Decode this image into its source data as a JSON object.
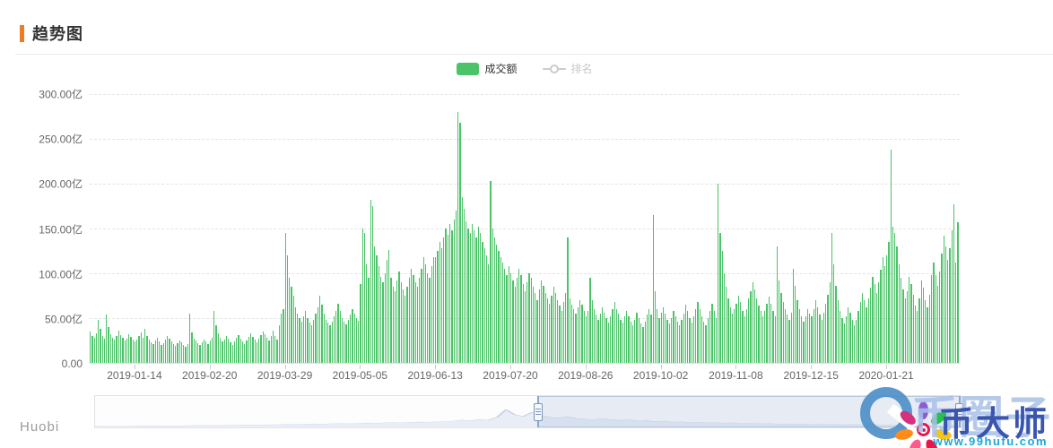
{
  "header": {
    "title": "趋势图"
  },
  "legend": {
    "items": [
      {
        "label": "成交额",
        "type": "bar",
        "active": true
      },
      {
        "label": "排名",
        "type": "line",
        "active": false
      }
    ]
  },
  "chart_data": {
    "type": "bar",
    "title": "趋势图",
    "series_name": "成交额",
    "unit": "亿",
    "ylim": [
      0,
      300
    ],
    "grid": "horizontal-dashed",
    "legend_position": "top-center",
    "y_tick_labels": [
      "300.00亿",
      "250.00亿",
      "200.00亿",
      "150.00亿",
      "100.00亿",
      "50.00亿",
      "0.00"
    ],
    "x_tick_labels": [
      "2019-01-14",
      "2019-02-20",
      "2019-03-29",
      "2019-05-05",
      "2019-06-13",
      "2019-07-20",
      "2019-08-26",
      "2019-10-02",
      "2019-11-08",
      "2019-12-15",
      "2020-01-21"
    ],
    "values": [
      35,
      30,
      28,
      33,
      48,
      38,
      30,
      27,
      54,
      40,
      32,
      28,
      26,
      30,
      36,
      31,
      28,
      25,
      27,
      32,
      29,
      26,
      24,
      26,
      30,
      34,
      28,
      38,
      30,
      26,
      23,
      21,
      25,
      28,
      24,
      20,
      22,
      26,
      30,
      27,
      24,
      21,
      19,
      22,
      25,
      23,
      20,
      18,
      21,
      55,
      34,
      27,
      25,
      22,
      20,
      23,
      26,
      24,
      21,
      25,
      28,
      58,
      42,
      33,
      28,
      24,
      26,
      30,
      27,
      23,
      20,
      24,
      28,
      31,
      27,
      24,
      21,
      25,
      29,
      33,
      29,
      26,
      23,
      27,
      31,
      35,
      32,
      28,
      25,
      30,
      36,
      30,
      26,
      42,
      55,
      60,
      145,
      120,
      95,
      85,
      75,
      62,
      55,
      50,
      46,
      52,
      58,
      50,
      45,
      42,
      48,
      55,
      62,
      75,
      65,
      55,
      48,
      45,
      42,
      46,
      52,
      58,
      66,
      58,
      50,
      46,
      43,
      48,
      54,
      60,
      55,
      50,
      47,
      88,
      150,
      145,
      110,
      95,
      182,
      175,
      130,
      120,
      108,
      96,
      90,
      100,
      115,
      126,
      95,
      85,
      80,
      92,
      102,
      90,
      82,
      75,
      85,
      95,
      105,
      98,
      90,
      85,
      95,
      105,
      118,
      110,
      100,
      95,
      108,
      118,
      118,
      125,
      135,
      128,
      140,
      150,
      143,
      155,
      148,
      160,
      170,
      280,
      268,
      185,
      172,
      158,
      150,
      145,
      155,
      148,
      140,
      152,
      145,
      135,
      128,
      120,
      110,
      203,
      150,
      140,
      132,
      125,
      118,
      112,
      105,
      98,
      108,
      100,
      92,
      85,
      95,
      105,
      98,
      88,
      80,
      90,
      100,
      95,
      85,
      78,
      70,
      82,
      92,
      86,
      78,
      72,
      66,
      75,
      85,
      78,
      70,
      64,
      58,
      68,
      78,
      140,
      72,
      65,
      60,
      55,
      62,
      70,
      65,
      58,
      52,
      58,
      95,
      70,
      60,
      54,
      48,
      55,
      62,
      56,
      50,
      45,
      52,
      60,
      68,
      60,
      55,
      48,
      45,
      52,
      58,
      52,
      46,
      42,
      48,
      56,
      50,
      44,
      40,
      46,
      54,
      60,
      54,
      165,
      80,
      60,
      50,
      56,
      62,
      55,
      48,
      44,
      50,
      58,
      52,
      46,
      42,
      48,
      55,
      65,
      58,
      50,
      45,
      52,
      60,
      68,
      60,
      52,
      46,
      42,
      50,
      58,
      66,
      58,
      50,
      200,
      145,
      125,
      100,
      85,
      72,
      62,
      55,
      60,
      66,
      75,
      68,
      58,
      52,
      60,
      72,
      80,
      90,
      82,
      72,
      64,
      58,
      52,
      58,
      66,
      74,
      66,
      58,
      52,
      130,
      92,
      78,
      68,
      60,
      54,
      48,
      56,
      105,
      86,
      70,
      60,
      52,
      46,
      52,
      60,
      55,
      52,
      60,
      70,
      62,
      54,
      48,
      56,
      66,
      76,
      90,
      145,
      110,
      86,
      70,
      58,
      50,
      44,
      52,
      62,
      56,
      48,
      42,
      48,
      58,
      68,
      78,
      70,
      62,
      72,
      84,
      96,
      88,
      78,
      90,
      104,
      118,
      108,
      120,
      135,
      238,
      152,
      145,
      130,
      110,
      95,
      82,
      72,
      80,
      96,
      88,
      76,
      64,
      58,
      72,
      92,
      84,
      70,
      62,
      76,
      98,
      112,
      98,
      86,
      102,
      122,
      142,
      130,
      115,
      128,
      148,
      177,
      112,
      157
    ]
  },
  "datazoom": {
    "start_pct": 51.2,
    "end_pct": 100,
    "overview_values": [
      3,
      3,
      3,
      3,
      3,
      4,
      4,
      4,
      5,
      5,
      5,
      6,
      6,
      7,
      7,
      8,
      8,
      9,
      10,
      10,
      11,
      12,
      14,
      13,
      15,
      16,
      15,
      17,
      18,
      17,
      19,
      21,
      20,
      22,
      24,
      23,
      25,
      27,
      26,
      28,
      30,
      33,
      38,
      35,
      42,
      40,
      55,
      100,
      70,
      60,
      85,
      65,
      55,
      50,
      58,
      48,
      44,
      40,
      46,
      42,
      36,
      40,
      32,
      36,
      28,
      32,
      26,
      28,
      24,
      26,
      22,
      24,
      20,
      22,
      18,
      20,
      17,
      18,
      15,
      16,
      14,
      15,
      13,
      14,
      12,
      13,
      11,
      12,
      10,
      11,
      10,
      10,
      9,
      9,
      8,
      9,
      8,
      8,
      8,
      8
    ]
  },
  "footer": {
    "source": "Huobi"
  },
  "watermark": {
    "back_text": "币圈子",
    "front_text": "币大师",
    "url": "www.99hufu.com"
  },
  "colors": {
    "accent_orange": "#ed7d24",
    "bar_green": "#4cc368",
    "axis_label": "#666666",
    "disabled_legend": "#c9c9c9"
  }
}
